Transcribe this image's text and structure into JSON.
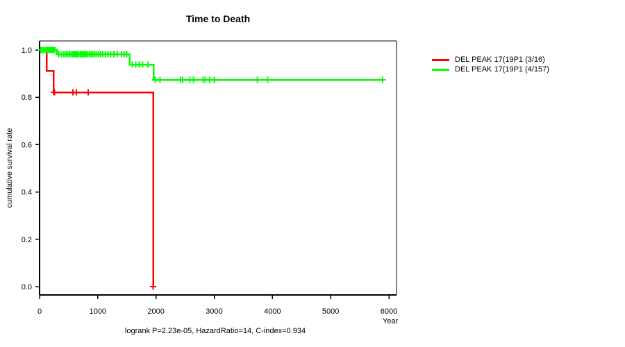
{
  "chart_data": {
    "type": "line",
    "subtype": "kaplan-meier-step",
    "title": "Time to Death",
    "xlabel": "Year",
    "ylabel": "cumulative survival rate",
    "annotation": "logrank P=2.23e-05, HazardRatio=14, C-index=0.934",
    "xlim": [
      0,
      6000
    ],
    "ylim": [
      0.0,
      1.0
    ],
    "xticks": [
      0,
      1000,
      2000,
      3000,
      4000,
      5000,
      6000
    ],
    "yticks": [
      0.0,
      0.2,
      0.4,
      0.6,
      0.8,
      1.0
    ],
    "grid": false,
    "legend_position": "right-outside",
    "box_color": "#808080",
    "axis_color": "#000000",
    "series": [
      {
        "name": "DEL PEAK 17(19P1 (3/16)",
        "color": "#FF0000",
        "steps": [
          [
            0,
            1.0
          ],
          [
            120,
            1.0
          ],
          [
            120,
            0.912
          ],
          [
            240,
            0.912
          ],
          [
            240,
            0.821
          ],
          [
            1950,
            0.821
          ],
          [
            1950,
            0.0
          ]
        ],
        "censors": [
          [
            245,
            0.821
          ],
          [
            258,
            0.821
          ],
          [
            570,
            0.821
          ],
          [
            630,
            0.821
          ],
          [
            835,
            0.821
          ],
          [
            1950,
            0.0
          ]
        ]
      },
      {
        "name": "DEL PEAK 17(19P1 (4/157)",
        "color": "#00FF00",
        "steps": [
          [
            0,
            1.0
          ],
          [
            300,
            1.0
          ],
          [
            300,
            0.982
          ],
          [
            1550,
            0.982
          ],
          [
            1550,
            0.938
          ],
          [
            1960,
            0.938
          ],
          [
            1960,
            0.874
          ],
          [
            5890,
            0.874
          ]
        ],
        "censors": [
          [
            25,
            1.0
          ],
          [
            55,
            1.0
          ],
          [
            80,
            1.0
          ],
          [
            105,
            1.0
          ],
          [
            125,
            1.0
          ],
          [
            145,
            1.0
          ],
          [
            165,
            1.0
          ],
          [
            190,
            1.0
          ],
          [
            215,
            1.0
          ],
          [
            240,
            1.0
          ],
          [
            265,
            1.0
          ],
          [
            330,
            0.982
          ],
          [
            375,
            0.982
          ],
          [
            420,
            0.982
          ],
          [
            455,
            0.982
          ],
          [
            485,
            0.982
          ],
          [
            515,
            0.982
          ],
          [
            545,
            0.982
          ],
          [
            570,
            0.982
          ],
          [
            595,
            0.982
          ],
          [
            620,
            0.982
          ],
          [
            645,
            0.982
          ],
          [
            670,
            0.982
          ],
          [
            695,
            0.982
          ],
          [
            720,
            0.982
          ],
          [
            745,
            0.982
          ],
          [
            770,
            0.982
          ],
          [
            795,
            0.982
          ],
          [
            820,
            0.982
          ],
          [
            850,
            0.982
          ],
          [
            880,
            0.982
          ],
          [
            910,
            0.982
          ],
          [
            940,
            0.982
          ],
          [
            970,
            0.982
          ],
          [
            1005,
            0.982
          ],
          [
            1045,
            0.982
          ],
          [
            1085,
            0.982
          ],
          [
            1130,
            0.982
          ],
          [
            1175,
            0.982
          ],
          [
            1225,
            0.982
          ],
          [
            1275,
            0.982
          ],
          [
            1335,
            0.982
          ],
          [
            1405,
            0.982
          ],
          [
            1455,
            0.982
          ],
          [
            1495,
            0.982
          ],
          [
            1590,
            0.938
          ],
          [
            1650,
            0.938
          ],
          [
            1710,
            0.938
          ],
          [
            1770,
            0.938
          ],
          [
            1860,
            0.938
          ],
          [
            1985,
            0.874
          ],
          [
            2070,
            0.874
          ],
          [
            2420,
            0.874
          ],
          [
            2460,
            0.874
          ],
          [
            2580,
            0.874
          ],
          [
            2640,
            0.874
          ],
          [
            2810,
            0.874
          ],
          [
            2845,
            0.874
          ],
          [
            2925,
            0.874
          ],
          [
            3000,
            0.874
          ],
          [
            3740,
            0.874
          ],
          [
            3920,
            0.874
          ],
          [
            5890,
            0.874
          ]
        ]
      }
    ]
  }
}
